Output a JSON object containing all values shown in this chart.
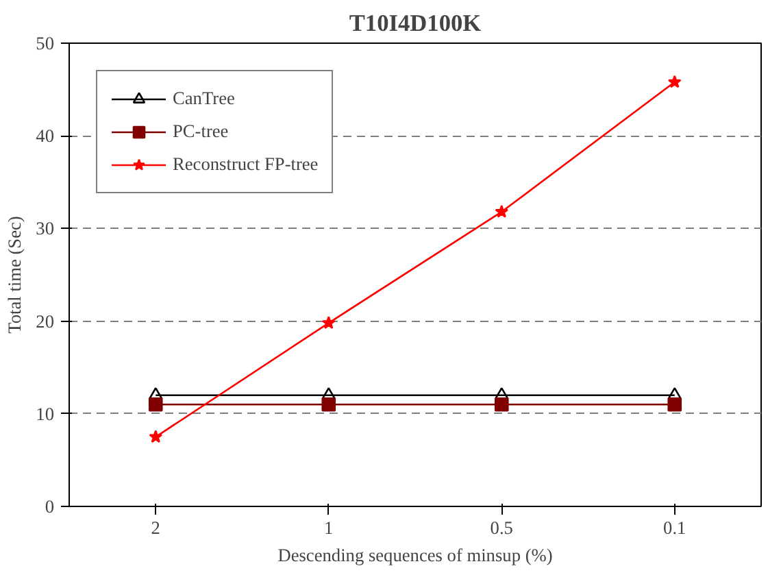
{
  "chart_data": {
    "type": "line",
    "title": "T10I4D100K",
    "xlabel": "Descending sequences of minsup (%)",
    "ylabel": "Total time (Sec)",
    "categories": [
      "2",
      "1",
      "0.5",
      "0.1"
    ],
    "series": [
      {
        "name": "CanTree",
        "color": "#000000",
        "marker": "triangle",
        "values": [
          12,
          12,
          12,
          12
        ]
      },
      {
        "name": "PC-tree",
        "color": "#800000",
        "marker": "square",
        "values": [
          11,
          11,
          11,
          11
        ]
      },
      {
        "name": "Reconstruct FP-tree",
        "color": "#ff0000",
        "marker": "star",
        "values": [
          7.5,
          19.8,
          31.8,
          45.8
        ]
      }
    ],
    "ylim": [
      0,
      50
    ],
    "yticks": [
      0,
      10,
      20,
      30,
      40,
      50
    ],
    "grid": "y",
    "legend": "top left",
    "line_style": "solid"
  }
}
